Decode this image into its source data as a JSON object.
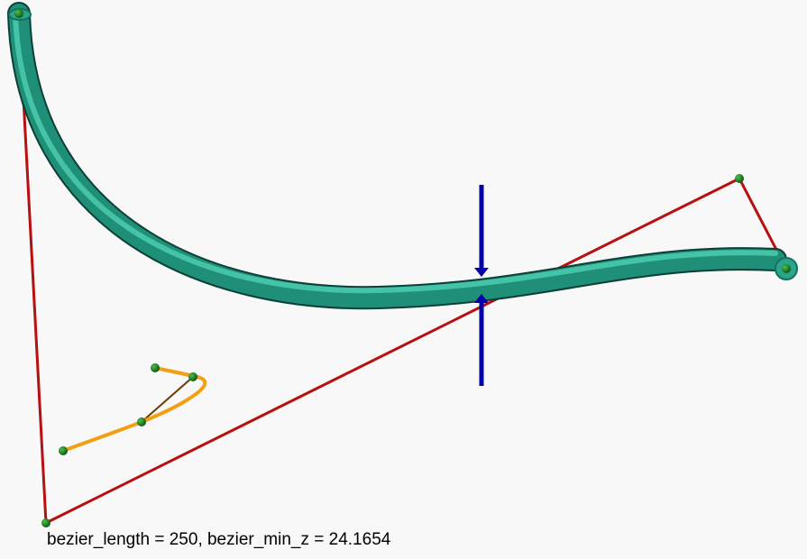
{
  "caption": "bezier_length = 250, bezier_min_z = 24.1654",
  "colors": {
    "background": "#f8f8f8",
    "main_tube": "#2aa58c",
    "main_tube_dark": "#0f4f45",
    "small_curve": "#f0a010",
    "control_polygon": "#cc1010",
    "marker": "#0000a0",
    "control_point": "#1a7a1a"
  }
}
